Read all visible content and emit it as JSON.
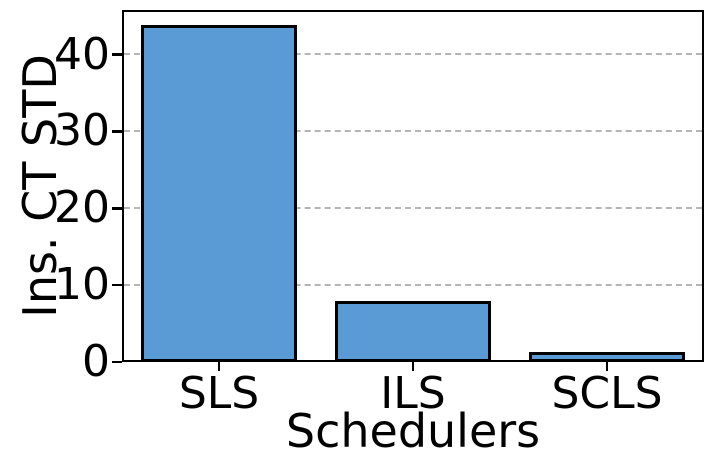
{
  "chart_data": {
    "type": "bar",
    "categories": [
      "SLS",
      "ILS",
      "SCLS"
    ],
    "values": [
      43.8,
      7.9,
      1.3
    ],
    "title": "",
    "xlabel": "Schedulers",
    "ylabel": "Ins. CT STD",
    "ylim": [
      0,
      45.8
    ],
    "yticks": [
      0,
      10,
      20,
      30,
      40
    ],
    "grid": {
      "axis": "y",
      "style": "dashed",
      "color": "#b5b5b5"
    },
    "legend": "none",
    "bar_color": "#5B9BD5",
    "bar_edge_color": "#000000",
    "spine_color": "#000000",
    "background_color": "#ffffff"
  }
}
